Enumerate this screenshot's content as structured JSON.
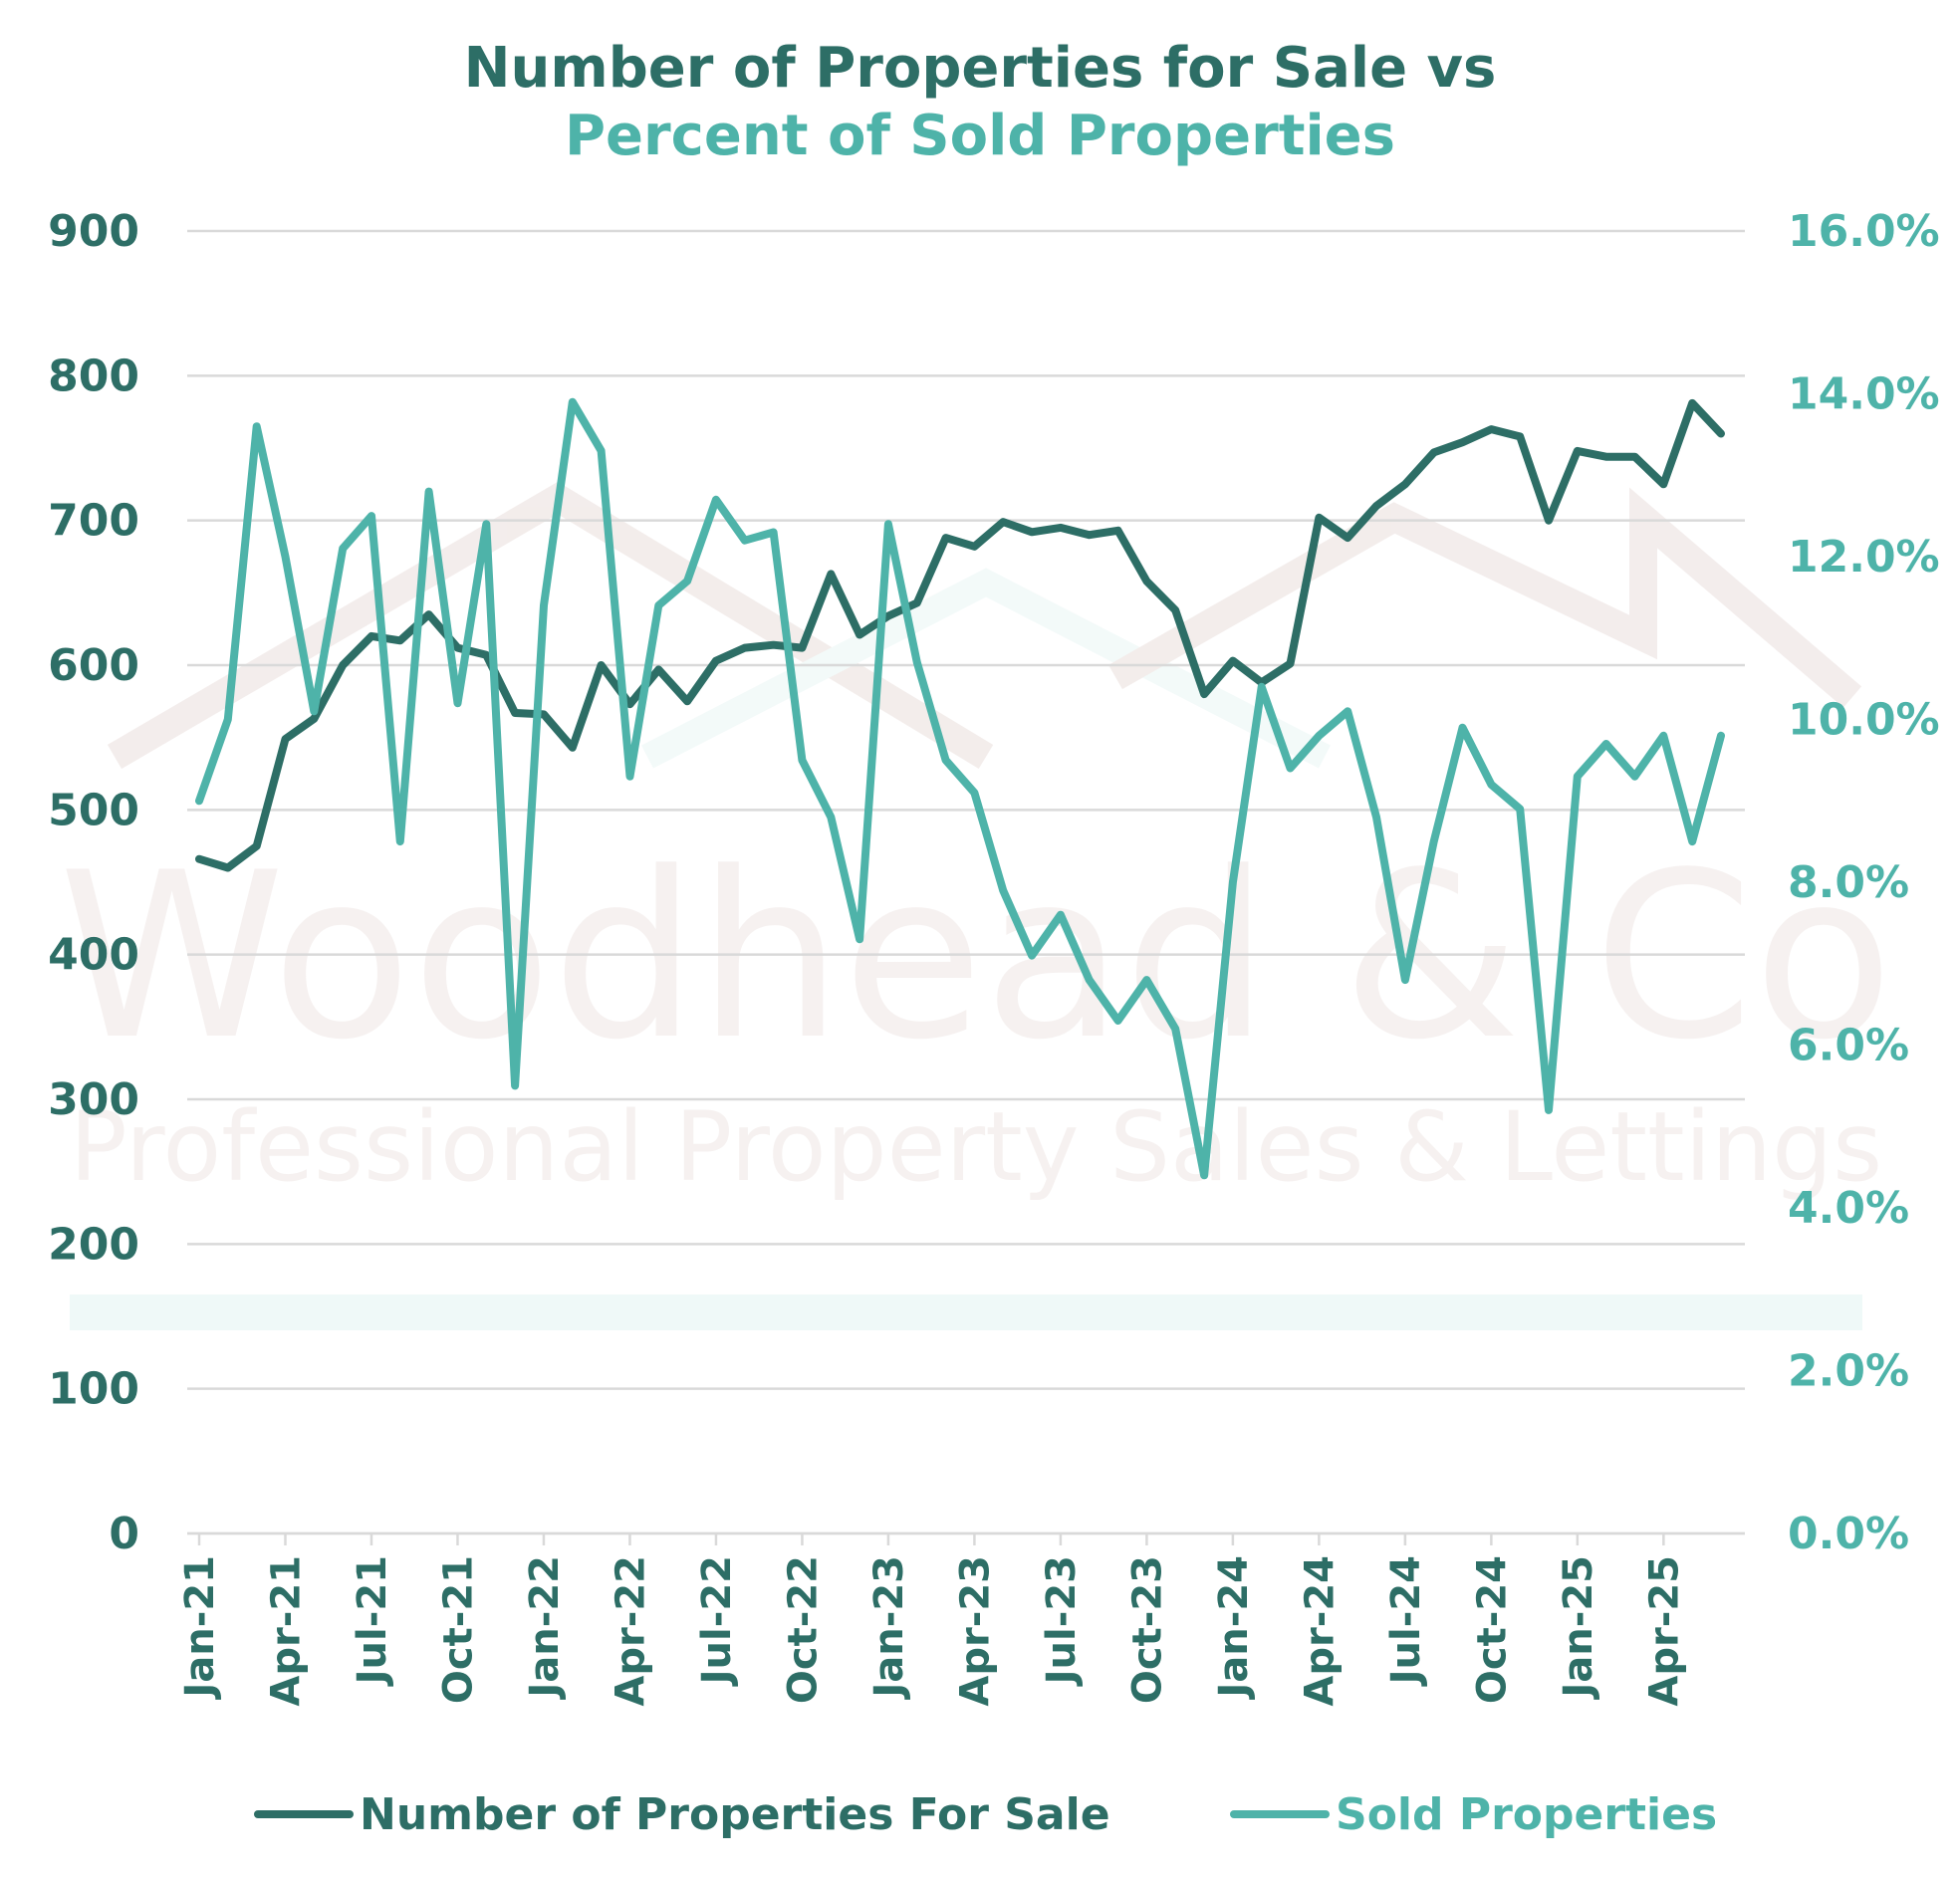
{
  "title_line1": "Number of Properties for Sale vs",
  "title_line2": "Percent of Sold Properties",
  "watermark": {
    "name": "Woodhead & Co",
    "tagline": "Professional Property Sales & Lettings"
  },
  "colors": {
    "primary_series": "#2d6e66",
    "secondary_series": "#4eb3a9",
    "grid": "#d9d9d9"
  },
  "chart_data": {
    "type": "line",
    "x": [
      "Jan-21",
      "Feb-21",
      "Mar-21",
      "Apr-21",
      "May-21",
      "Jun-21",
      "Jul-21",
      "Aug-21",
      "Sep-21",
      "Oct-21",
      "Nov-21",
      "Dec-21",
      "Jan-22",
      "Feb-22",
      "Mar-22",
      "Apr-22",
      "May-22",
      "Jun-22",
      "Jul-22",
      "Aug-22",
      "Sep-22",
      "Oct-22",
      "Nov-22",
      "Dec-22",
      "Jan-23",
      "Feb-23",
      "Mar-23",
      "Apr-23",
      "May-23",
      "Jun-23",
      "Jul-23",
      "Aug-23",
      "Sep-23",
      "Oct-23",
      "Nov-23",
      "Dec-23",
      "Jan-24",
      "Feb-24",
      "Mar-24",
      "Apr-24",
      "May-24",
      "Jun-24",
      "Jul-24",
      "Aug-24",
      "Sep-24",
      "Oct-24",
      "Nov-24",
      "Dec-24",
      "Jan-25",
      "Feb-25",
      "Mar-25",
      "Apr-25",
      "May-25",
      "Jun-25"
    ],
    "x_tick_labels": [
      "Jan-21",
      "Apr-21",
      "Jul-21",
      "Oct-21",
      "Jan-22",
      "Apr-22",
      "Jul-22",
      "Oct-22",
      "Jan-23",
      "Apr-23",
      "Jul-23",
      "Oct-23",
      "Jan-24",
      "Apr-24",
      "Jul-24",
      "Oct-24",
      "Jan-25",
      "Apr-25"
    ],
    "y_left": {
      "ylim": [
        0,
        900
      ],
      "ticks": [
        "0",
        "100",
        "200",
        "300",
        "400",
        "500",
        "600",
        "700",
        "800",
        "900"
      ]
    },
    "y_right": {
      "ylim": [
        0,
        16
      ],
      "ticks": [
        "0.0%",
        "2.0%",
        "4.0%",
        "6.0%",
        "8.0%",
        "10.0%",
        "12.0%",
        "14.0%",
        "16.0%"
      ]
    },
    "grid": true,
    "legend_position": "bottom",
    "series": [
      {
        "name": "Number of Properties For Sale",
        "axis": "left",
        "values": [
          466,
          460,
          475,
          549,
          563,
          600,
          620,
          617,
          635,
          612,
          607,
          567,
          566,
          543,
          600,
          573,
          597,
          575,
          603,
          612,
          614,
          612,
          663,
          621,
          634,
          643,
          688,
          682,
          699,
          692,
          695,
          690,
          693,
          658,
          638,
          580,
          603,
          588,
          601,
          702,
          688,
          710,
          725,
          747,
          754,
          763,
          758,
          700,
          748,
          744,
          744,
          725,
          781,
          760
        ]
      },
      {
        "name": "Sold Properties",
        "axis": "right",
        "values": [
          9.0,
          10.0,
          13.6,
          12.0,
          10.1,
          12.1,
          12.5,
          8.5,
          12.8,
          10.2,
          12.4,
          5.5,
          11.4,
          13.9,
          13.3,
          9.3,
          11.4,
          11.7,
          12.7,
          12.2,
          12.3,
          9.5,
          8.8,
          7.3,
          12.4,
          10.7,
          9.5,
          9.1,
          7.9,
          7.1,
          7.6,
          6.8,
          6.3,
          6.8,
          6.2,
          4.4,
          8.0,
          10.4,
          9.4,
          9.8,
          10.1,
          8.8,
          6.8,
          8.5,
          9.9,
          9.2,
          8.9,
          5.2,
          9.3,
          9.7,
          9.3,
          9.8,
          8.5,
          9.8
        ]
      }
    ]
  }
}
